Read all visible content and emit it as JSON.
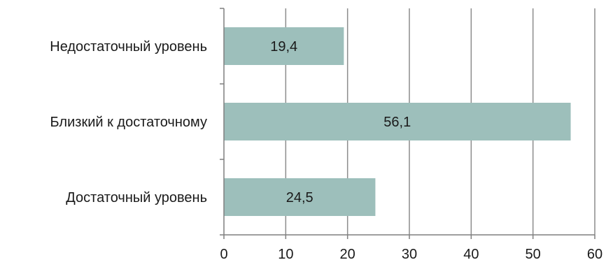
{
  "chart_data": {
    "type": "bar",
    "orientation": "horizontal",
    "categories": [
      "Недостаточный уровень",
      "Близкий к достаточному",
      "Достаточный уровень"
    ],
    "values": [
      19.4,
      56.1,
      24.5
    ],
    "value_labels": [
      "19,4",
      "56,1",
      "24,5"
    ],
    "title": "",
    "xlabel": "",
    "ylabel": "",
    "xlim": [
      0,
      60
    ],
    "ticks": [
      0,
      10,
      20,
      30,
      40,
      50,
      60
    ],
    "tick_labels": [
      "0",
      "10",
      "20",
      "30",
      "40",
      "50",
      "60"
    ],
    "grid": true,
    "colors": {
      "bar": "#9dbfbb",
      "grid": "#8c8c8c",
      "axis": "#7f7f7f",
      "text": "#1a1a1a"
    }
  }
}
